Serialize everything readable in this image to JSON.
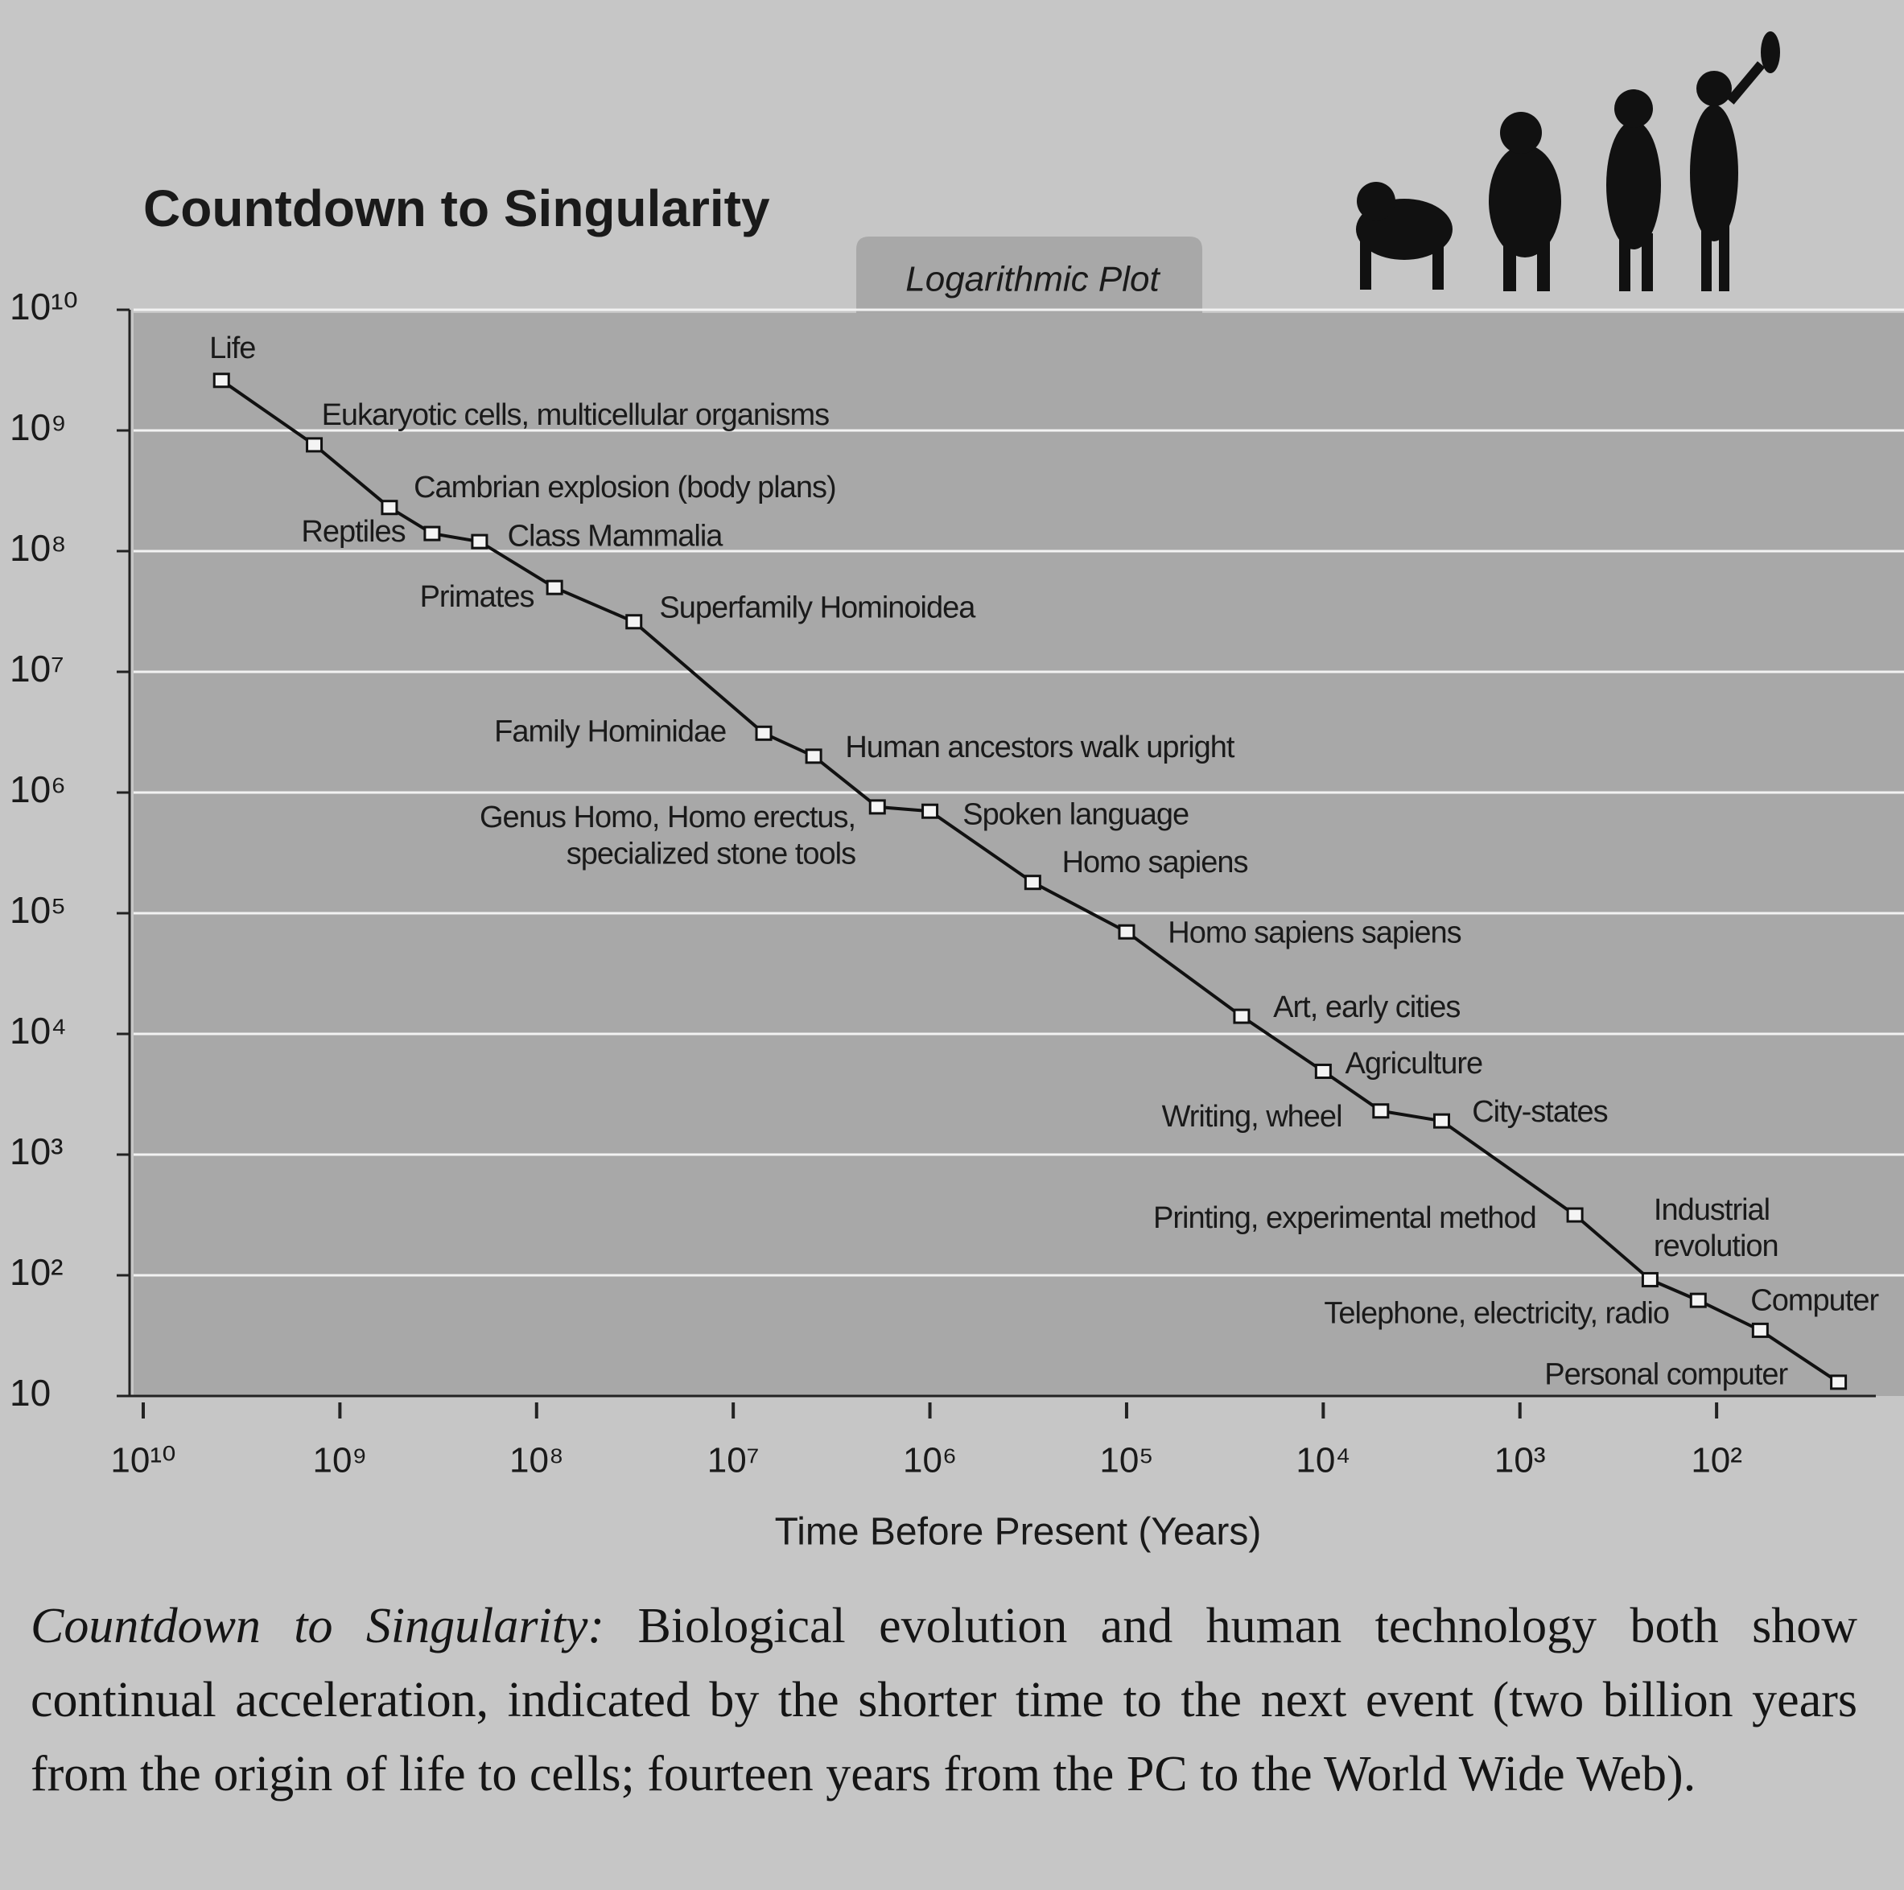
{
  "chart_data": {
    "type": "line",
    "title": "Countdown to Singularity",
    "subtitle": "Logarithmic Plot",
    "xlabel": "Time Before Present (Years)",
    "xscale": "log",
    "yscale": "log",
    "grid": true,
    "color": "#111111",
    "xlim": [
      10000000000,
      15.5
    ],
    "ylim": [
      10,
      10000000000
    ],
    "xticks": [
      {
        "value": 10000000000,
        "label": "10¹⁰"
      },
      {
        "value": 1000000000,
        "label": "10⁹"
      },
      {
        "value": 100000000,
        "label": "10⁸"
      },
      {
        "value": 10000000,
        "label": "10⁷"
      },
      {
        "value": 1000000,
        "label": "10⁶"
      },
      {
        "value": 100000,
        "label": "10⁵"
      },
      {
        "value": 10000,
        "label": "10⁴"
      },
      {
        "value": 1000,
        "label": "10³"
      },
      {
        "value": 100,
        "label": "10²"
      }
    ],
    "yticks": [
      {
        "value": 10000000000,
        "label": "10¹⁰"
      },
      {
        "value": 1000000000,
        "label": "10⁹"
      },
      {
        "value": 100000000,
        "label": "10⁸"
      },
      {
        "value": 10000000,
        "label": "10⁷"
      },
      {
        "value": 1000000,
        "label": "10⁶"
      },
      {
        "value": 100000,
        "label": "10⁵"
      },
      {
        "value": 10000,
        "label": "10⁴"
      },
      {
        "value": 1000,
        "label": "10³"
      },
      {
        "value": 100,
        "label": "10²"
      },
      10
    ],
    "x": [
      4000000000,
      1350000000,
      560000000,
      340000000,
      195000000,
      81000000,
      32000000,
      7000000,
      3900000,
      1850000,
      1000000,
      300000,
      100000,
      26000,
      10000,
      5100,
      2500,
      525,
      218,
      124,
      60,
      24
    ],
    "values": [
      2600000000,
      760000000,
      230000000,
      140000000,
      120000000,
      50000000,
      26000000,
      3100000,
      2000000,
      760000,
      700000,
      180000,
      70000,
      14000,
      4900,
      2300,
      1900,
      316,
      92,
      62,
      35,
      13
    ],
    "point_labels": [
      "Life",
      "Eukaryotic cells, multicellular organisms",
      "Cambrian explosion (body plans)",
      "Reptiles",
      "Class Mammalia",
      "Primates",
      "Superfamily Hominoidea",
      "Family Hominidae",
      "Human ancestors walk upright",
      [
        "Genus Homo, Homo erectus,",
        "specialized stone tools"
      ],
      "Spoken language",
      "Homo sapiens",
      "Homo sapiens sapiens",
      "Art, early cities",
      "Agriculture",
      "Writing, wheel",
      "City-states",
      "Printing, experimental method",
      [
        "Industrial",
        "revolution"
      ],
      "Telephone, electricity, radio",
      "Computer",
      "Personal computer"
    ]
  },
  "caption": {
    "lead": "Countdown to Singularity:",
    "text": "Biological evolution and human technology both show continual acceleration, indicated by the shorter time to the next event (two billion years from the origin of life to cells; fourteen years from the PC to the World Wide Web)."
  }
}
